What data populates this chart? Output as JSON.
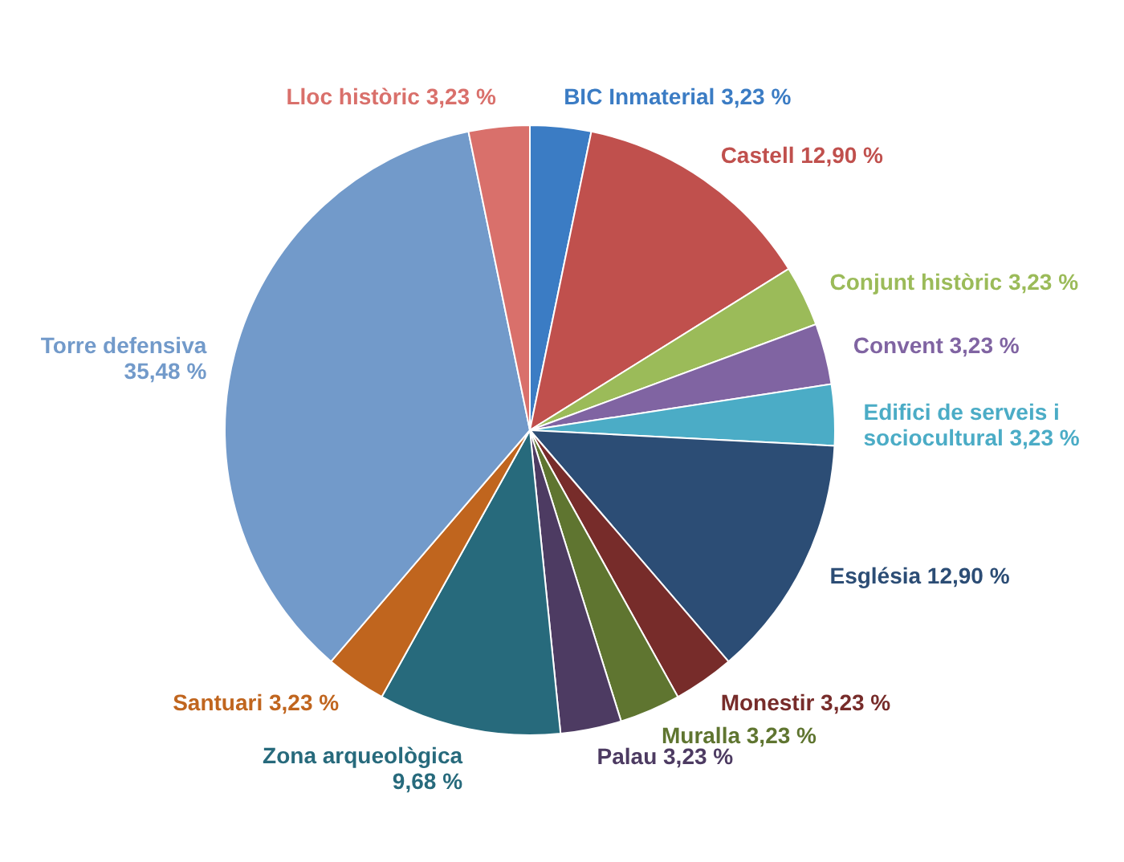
{
  "chart_data": {
    "type": "pie",
    "categories": [
      "BIC Inmaterial",
      "Castell",
      "Conjunt històric",
      "Convent",
      "Edifici de serveis i sociocultural",
      "Església",
      "Monestir",
      "Muralla",
      "Palau",
      "Zona arqueològica",
      "Santuari",
      "Torre defensiva",
      "Lloc històric"
    ],
    "values": [
      3.23,
      12.9,
      3.23,
      3.23,
      3.23,
      12.9,
      3.23,
      3.23,
      3.23,
      9.68,
      3.23,
      35.48,
      3.23
    ],
    "value_labels": [
      "3,23 %",
      "12,90 %",
      "3,23 %",
      "3,23 %",
      "3,23 %",
      "12,90 %",
      "3,23 %",
      "3,23 %",
      "3,23 %",
      "9,68 %",
      "3,23 %",
      "35,48 %",
      "3,23 %"
    ],
    "colors": [
      "#3b7cc4",
      "#c0504d",
      "#9bbb59",
      "#8064a2",
      "#4bacc6",
      "#2c4d75",
      "#772c2a",
      "#5f7530",
      "#4d3b62",
      "#276a7c",
      "#c0651e",
      "#729aca",
      "#d9706b"
    ]
  }
}
